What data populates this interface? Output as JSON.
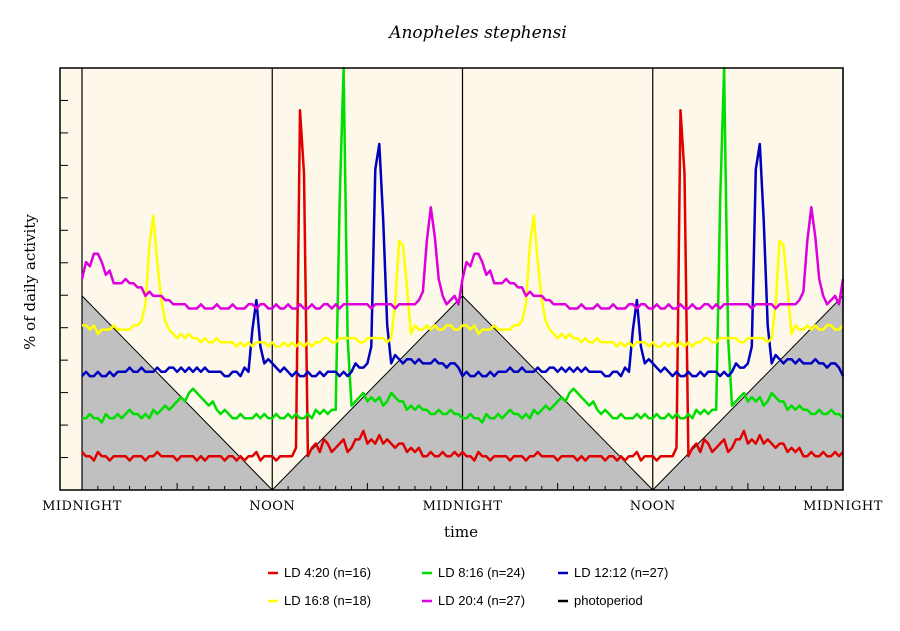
{
  "chart_data": {
    "type": "line",
    "title": "Anopheles stephensi",
    "xlabel": "time",
    "ylabel": "% of daily activity",
    "x_tick_labels": [
      "MIDNIGHT",
      "NOON",
      "MIDNIGHT",
      "NOON",
      "MIDNIGHT"
    ],
    "x_range_hours": [
      0,
      48
    ],
    "y_range": [
      0,
      100
    ],
    "grid": false,
    "legend_position": "bottom",
    "colors": {
      "plot_background": "#fdf8ea",
      "photoperiod_fill": "#c0c0c0",
      "photoperiod_line": "#000000"
    },
    "photoperiod": {
      "name": "photoperiod",
      "color": "#000000",
      "x_hours": [
        0,
        12,
        24,
        36,
        48
      ],
      "values": [
        46,
        0,
        46,
        0,
        46
      ]
    },
    "series": [
      {
        "name": "LD 4:20 (n=16)",
        "color": "#e00000",
        "peak_hour": 0.85,
        "values": [
          9,
          8,
          8,
          7,
          9,
          8,
          8,
          7,
          8,
          8,
          8,
          8,
          7,
          8,
          8,
          8,
          7,
          8,
          8,
          9,
          8,
          8,
          8,
          8,
          7,
          8,
          8,
          8,
          8,
          7,
          8,
          7,
          8,
          8,
          8,
          8,
          7,
          8,
          8,
          7,
          8,
          7,
          8,
          8,
          9,
          7,
          8,
          8,
          8,
          7,
          8,
          8,
          8,
          8,
          10,
          90,
          75,
          8,
          10,
          11,
          9,
          12,
          11,
          9,
          10,
          11,
          12,
          9,
          10,
          12,
          12,
          14,
          11,
          12,
          11,
          13,
          11,
          12,
          11,
          10,
          11,
          11,
          9,
          10,
          9,
          10,
          8,
          8,
          9,
          8,
          8,
          9,
          8,
          8,
          9,
          8
        ]
      },
      {
        "name": "LD 8:16 (n=24)",
        "color": "#00dd00",
        "peak_hour": 1.6,
        "values": [
          17,
          17,
          18,
          17,
          17,
          16,
          18,
          17,
          17,
          18,
          17,
          18,
          19,
          18,
          18,
          17,
          18,
          17,
          19,
          18,
          19,
          20,
          19,
          20,
          21,
          22,
          21,
          23,
          24,
          23,
          22,
          21,
          20,
          21,
          19,
          18,
          19,
          18,
          17,
          17,
          18,
          17,
          17,
          17,
          18,
          17,
          18,
          17,
          17,
          18,
          17,
          17,
          18,
          17,
          18,
          17,
          17,
          18,
          17,
          19,
          18,
          19,
          18,
          19,
          19,
          68,
          100,
          36,
          20,
          21,
          22,
          23,
          21,
          22,
          21,
          22,
          20,
          21,
          23,
          22,
          21,
          21,
          19,
          20,
          19,
          20,
          19,
          19,
          18,
          18,
          19,
          18,
          18,
          19,
          18,
          18
        ]
      },
      {
        "name": "LD 12:12 (n=27)",
        "color": "#0000c0",
        "peak_hour": 2.4,
        "values": [
          27,
          28,
          27,
          27,
          28,
          27,
          27,
          28,
          27,
          28,
          28,
          28,
          29,
          28,
          28,
          29,
          28,
          28,
          28,
          29,
          28,
          28,
          29,
          29,
          28,
          29,
          28,
          29,
          28,
          29,
          28,
          29,
          28,
          28,
          28,
          28,
          27,
          27,
          28,
          28,
          27,
          29,
          28,
          38,
          45,
          34,
          30,
          31,
          30,
          29,
          28,
          29,
          28,
          27,
          28,
          27,
          27,
          28,
          27,
          27,
          28,
          27,
          28,
          28,
          28,
          27,
          28,
          27,
          28,
          30,
          29,
          29,
          30,
          34,
          76,
          82,
          64,
          39,
          30,
          32,
          31,
          30,
          31,
          31,
          30,
          31,
          30,
          30,
          30,
          31,
          30,
          30,
          29,
          30,
          30,
          29
        ]
      },
      {
        "name": "LD 16:8 (n=18)",
        "color": "#ffff00",
        "peak_hour": 3.6,
        "values": [
          39,
          39,
          38,
          39,
          37,
          38,
          38,
          38,
          39,
          38,
          38,
          38,
          38,
          39,
          39,
          40,
          44,
          58,
          65,
          54,
          45,
          40,
          38,
          37,
          36,
          37,
          36,
          37,
          36,
          36,
          35,
          36,
          35,
          35,
          36,
          35,
          35,
          35,
          35,
          34,
          35,
          34,
          35,
          34,
          35,
          35,
          35,
          34,
          35,
          34,
          34,
          35,
          34,
          35,
          34,
          35,
          34,
          35,
          34,
          35,
          35,
          36,
          36,
          35,
          35,
          36,
          36,
          36,
          36,
          36,
          35,
          35,
          36,
          36,
          36,
          36,
          36,
          35,
          36,
          44,
          59,
          58,
          48,
          37,
          39,
          38,
          38,
          39,
          38,
          39,
          38,
          38,
          39,
          39,
          38,
          38
        ]
      },
      {
        "name": "LD 20:4 (n=27)",
        "color": "#dd00dd",
        "peak_hour": 4.15,
        "values": [
          50,
          54,
          53,
          56,
          56,
          54,
          51,
          52,
          49,
          49,
          49,
          50,
          49,
          49,
          48,
          48,
          46,
          47,
          46,
          46,
          46,
          45,
          45,
          44,
          44,
          44,
          44,
          43,
          43,
          43,
          44,
          43,
          43,
          43,
          44,
          43,
          43,
          43,
          44,
          43,
          43,
          43,
          44,
          44,
          43,
          44,
          44,
          43,
          43,
          44,
          43,
          43,
          44,
          43,
          43,
          44,
          43,
          43,
          44,
          43,
          43,
          44,
          44,
          43,
          44,
          43,
          44,
          44,
          44,
          44,
          44,
          44,
          44,
          43,
          44,
          44,
          44,
          44,
          44,
          43,
          44,
          44,
          44,
          44,
          44,
          45,
          47,
          59,
          67,
          60,
          50,
          46,
          44,
          45,
          46,
          44
        ]
      }
    ]
  },
  "legend": {
    "items": [
      {
        "label": "LD 4:20 (n=16)",
        "color": "#e00000"
      },
      {
        "label": "LD 8:16 (n=24)",
        "color": "#00dd00"
      },
      {
        "label": "LD 12:12 (n=27)",
        "color": "#0000c0"
      },
      {
        "label": "LD 16:8 (n=18)",
        "color": "#ffff00"
      },
      {
        "label": "LD 20:4 (n=27)",
        "color": "#dd00dd"
      },
      {
        "label": "photoperiod",
        "color": "#000000"
      }
    ]
  }
}
